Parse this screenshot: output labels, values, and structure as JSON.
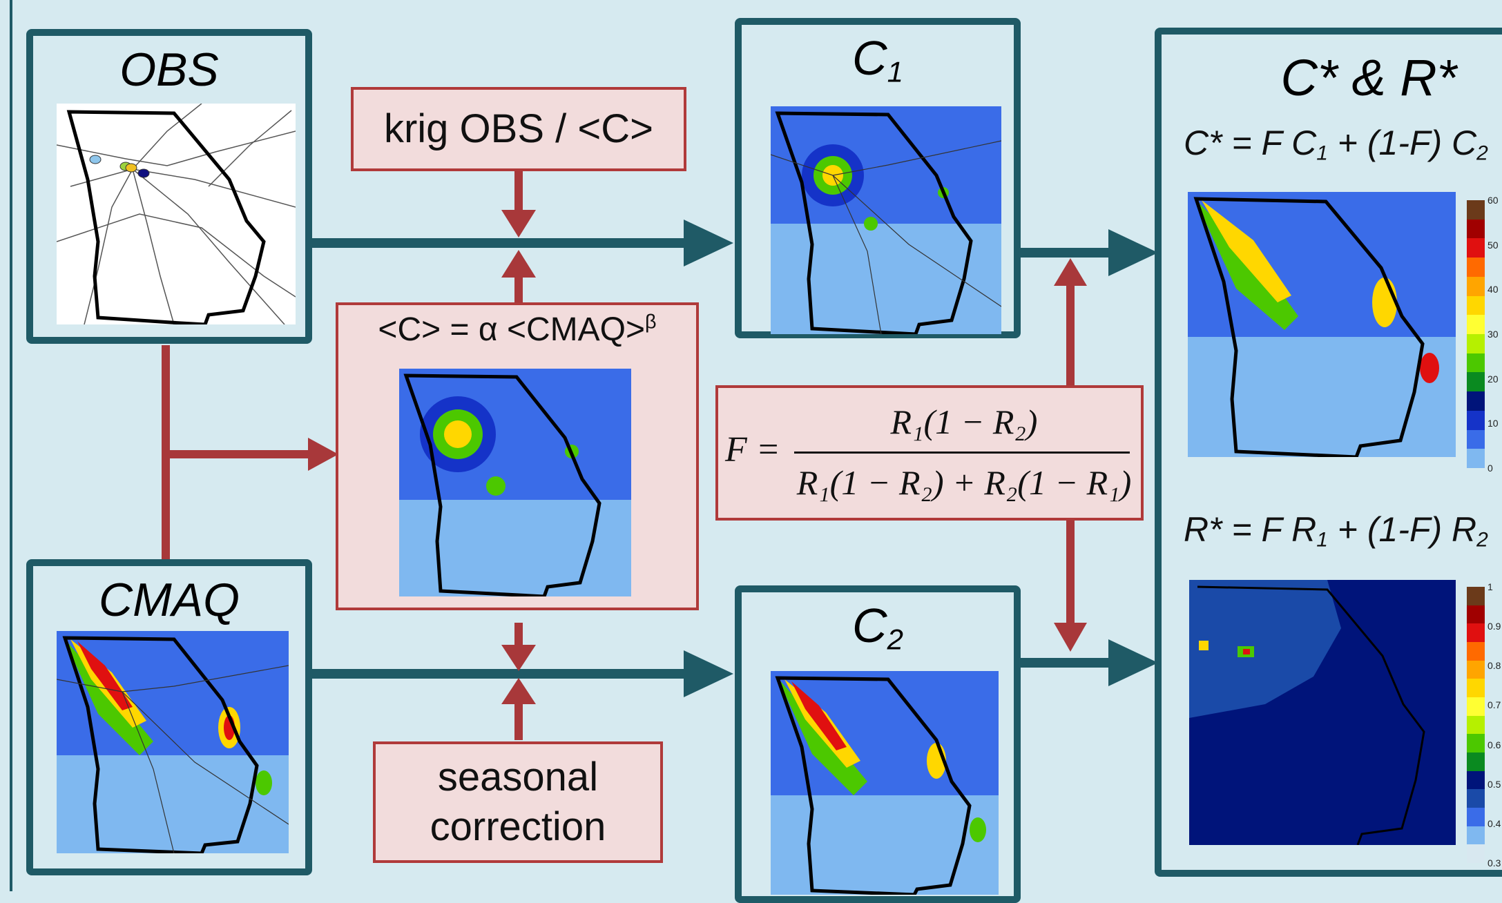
{
  "panels": {
    "obs": {
      "title": "OBS"
    },
    "cmaq": {
      "title": "CMAQ"
    },
    "c1": {
      "title": "C",
      "sub": "1"
    },
    "c2": {
      "title": "C",
      "sub": "2"
    },
    "combined": {
      "title": "C* & R*"
    }
  },
  "boxes": {
    "krig": {
      "label": "krig OBS / <C>"
    },
    "regression": {
      "label_main": "<C> = α <CMAQ>",
      "label_sup": "β"
    },
    "seasonal": {
      "line1": "seasonal",
      "line2": "correction"
    }
  },
  "formula_f": {
    "lhs": "F =",
    "numerator": "R₁(1 − R₂)",
    "denominator": "R₁(1 − R₂) + R₂(1 − R₁)"
  },
  "equations": {
    "cstar": {
      "lhs": "C* = F C",
      "s1": "1",
      "mid": " + (1-F) C",
      "s2": "2"
    },
    "rstar": {
      "lhs": "R* = F R",
      "s1": "1",
      "mid": " + (1-F) R",
      "s2": "2"
    }
  },
  "colorbar_c": {
    "ticks": [
      "60",
      "50",
      "40",
      "30",
      "20",
      "10",
      "0"
    ],
    "colors": [
      "#6b3a1a",
      "#a00000",
      "#e01010",
      "#ff6a00",
      "#ffa500",
      "#ffd700",
      "#ffff33",
      "#b6f000",
      "#4cc800",
      "#0a8a20",
      "#00147a",
      "#1533c8",
      "#3a6ce8",
      "#7fb8f0"
    ]
  },
  "colorbar_r": {
    "ticks": [
      "1",
      "0.9",
      "0.8",
      "0.7",
      "0.6",
      "0.5",
      "0.4",
      "0.3"
    ],
    "colors": [
      "#6b3a1a",
      "#a00000",
      "#e01010",
      "#ff6a00",
      "#ffa500",
      "#ffd700",
      "#ffff33",
      "#b6f000",
      "#4cc800",
      "#0a8a20",
      "#00147a",
      "#1a4aa8",
      "#3a6ce8",
      "#7fb8f0",
      "#d8e8f0"
    ]
  },
  "colors": {
    "panel_border": "#1f5a66",
    "red_arrow": "#a8383a",
    "box_fill": "#f2dcdc",
    "background": "#d6eaf0"
  }
}
